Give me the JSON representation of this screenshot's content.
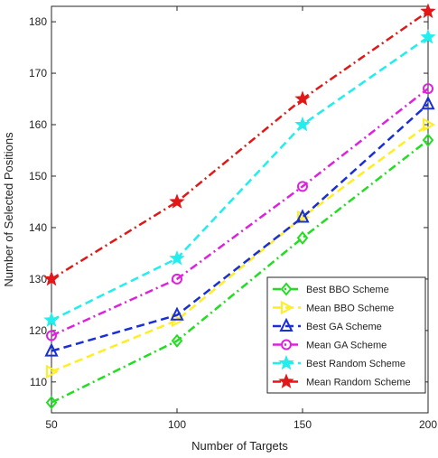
{
  "chart_data": {
    "type": "line",
    "title": "",
    "xlabel": "Number of Targets",
    "ylabel": "Number of Selected Positions",
    "x": [
      50,
      100,
      150,
      200
    ],
    "xlim": [
      50,
      200
    ],
    "ylim": [
      104,
      183
    ],
    "xticks": [
      "50",
      "100",
      "150",
      "200"
    ],
    "yticks": [
      "110",
      "120",
      "130",
      "140",
      "150",
      "160",
      "170",
      "180"
    ],
    "grid": false,
    "legend_position": "lower-right",
    "series": [
      {
        "name": "Best BBO Scheme",
        "values": [
          106,
          118,
          138,
          157
        ],
        "color": "#22dd22",
        "marker": "diamond",
        "dash": "dash-dot"
      },
      {
        "name": "Mean BBO Scheme",
        "values": [
          112,
          122,
          142,
          160
        ],
        "color": "#ffee22",
        "marker": "triangle-right",
        "dash": "dashed"
      },
      {
        "name": "Best GA Scheme",
        "values": [
          116,
          123,
          142,
          164
        ],
        "color": "#1a2fd6",
        "marker": "triangle-up",
        "dash": "dashed"
      },
      {
        "name": "Mean GA Scheme",
        "values": [
          119,
          130,
          148,
          167
        ],
        "color": "#dd22dd",
        "marker": "circle",
        "dash": "dash-dot"
      },
      {
        "name": "Best Random Scheme",
        "values": [
          122,
          134,
          160,
          177
        ],
        "color": "#22eeee",
        "marker": "star",
        "dash": "dashed"
      },
      {
        "name": "Mean Random Scheme",
        "values": [
          130,
          145,
          165,
          182
        ],
        "color": "#e01818",
        "marker": "star",
        "dash": "dash-dot"
      }
    ]
  }
}
